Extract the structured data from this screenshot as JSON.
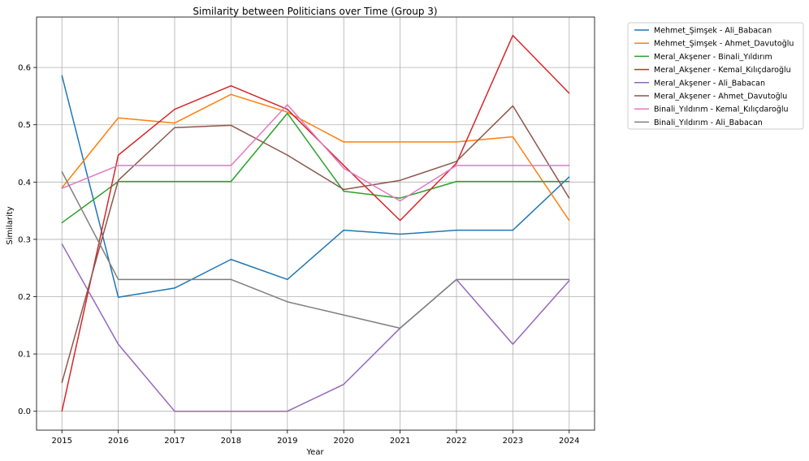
{
  "chart_data": {
    "type": "line",
    "title": "Similarity between Politicians over Time (Group 3)",
    "xlabel": "Year",
    "ylabel": "Similarity",
    "x": [
      2015,
      2016,
      2017,
      2018,
      2019,
      2020,
      2021,
      2022,
      2023,
      2024
    ],
    "xlim": [
      2014.55,
      2024.45
    ],
    "ylim": [
      -0.033,
      0.688
    ],
    "yticks": [
      "0.0",
      "0.1",
      "0.2",
      "0.3",
      "0.4",
      "0.5",
      "0.6"
    ],
    "grid": true,
    "legend_position": "outside-top-right",
    "series": [
      {
        "name": "Mehmet_Şimşek - Ali_Babacan",
        "color": "#1f77b4",
        "values": [
          0.586,
          0.199,
          0.215,
          0.265,
          0.23,
          0.316,
          0.309,
          0.316,
          0.316,
          0.409
        ]
      },
      {
        "name": "Mehmet_Şimşek - Ahmet_Davutoğlu",
        "color": "#ff7f0e",
        "values": [
          0.39,
          0.512,
          0.503,
          0.553,
          0.522,
          0.47,
          0.47,
          0.47,
          0.479,
          0.333
        ]
      },
      {
        "name": "Meral_Akşener - Binali_Yıldırım",
        "color": "#2ca02c",
        "values": [
          0.329,
          0.401,
          0.401,
          0.401,
          0.52,
          0.384,
          0.372,
          0.401,
          0.401,
          0.401
        ]
      },
      {
        "name": "Meral_Akşener - Kemal_Kılıçdaroğlu",
        "color": "#d62728",
        "values": [
          0.0,
          0.447,
          0.527,
          0.568,
          0.527,
          0.429,
          0.333,
          0.433,
          0.656,
          0.555
        ]
      },
      {
        "name": "Meral_Akşener - Ali_Babacan",
        "color": "#9467bd",
        "values": [
          0.292,
          0.117,
          0.0,
          0.0,
          0.0,
          0.047,
          0.145,
          0.23,
          0.117,
          0.228
        ]
      },
      {
        "name": "Meral_Akşener - Ahmet_Davutoğlu",
        "color": "#8c564b",
        "values": [
          0.05,
          0.403,
          0.495,
          0.499,
          0.447,
          0.387,
          0.403,
          0.436,
          0.533,
          0.372
        ]
      },
      {
        "name": "Binali_Yıldırım - Kemal_Kılıçdaroğlu",
        "color": "#e377c2",
        "values": [
          0.389,
          0.429,
          0.429,
          0.429,
          0.535,
          0.424,
          0.367,
          0.429,
          0.429,
          0.429
        ]
      },
      {
        "name": "Binali_Yıldırım - Ali_Babacan",
        "color": "#7f7f7f",
        "values": [
          0.418,
          0.23,
          0.23,
          0.23,
          0.191,
          0.168,
          0.145,
          0.23,
          0.23,
          0.23
        ]
      }
    ]
  }
}
